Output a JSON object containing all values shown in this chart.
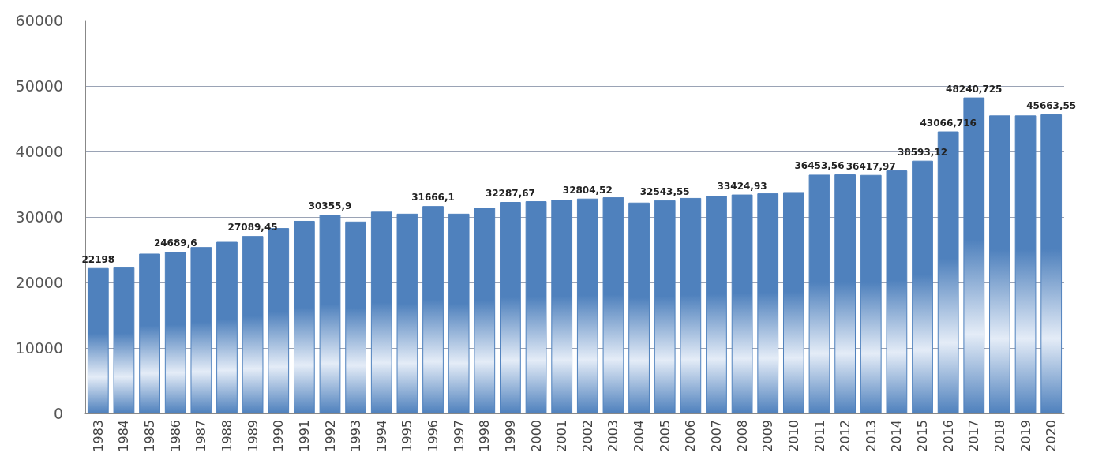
{
  "chart_data": {
    "type": "bar",
    "categories": [
      "1983",
      "1984",
      "1985",
      "1986",
      "1987",
      "1988",
      "1989",
      "1990",
      "1991",
      "1992",
      "1993",
      "1994",
      "1995",
      "1996",
      "1997",
      "1998",
      "1999",
      "2000",
      "2001",
      "2002",
      "2003",
      "2004",
      "2005",
      "2006",
      "2007",
      "2008",
      "2009",
      "2010",
      "2011",
      "2012",
      "2013",
      "2014",
      "2015",
      "2016",
      "2017",
      "2018",
      "2019",
      "2020"
    ],
    "values": [
      22198,
      22300,
      24400,
      24689.6,
      25400,
      26200,
      27089.45,
      28300,
      29400,
      30355.9,
      29300,
      30800,
      30500,
      31666.1,
      30500,
      31400,
      32287.67,
      32400,
      32600,
      32804.52,
      33000,
      32200,
      32543.55,
      32900,
      33200,
      33424.93,
      33600,
      33800,
      36453.56,
      36500,
      36417.97,
      37100,
      38593.12,
      43066.716,
      48240.725,
      45500,
      45500,
      45663.55
    ],
    "value_labels": [
      "22198",
      null,
      null,
      "24689,6",
      null,
      null,
      "27089,45",
      null,
      null,
      "30355,9",
      null,
      null,
      null,
      "31666,1",
      null,
      null,
      "32287,67",
      null,
      null,
      "32804,52",
      null,
      null,
      "32543,55",
      null,
      null,
      "33424,93",
      null,
      null,
      "36453,56",
      null,
      "36417,97",
      null,
      "38593,12",
      "43066,716",
      "48240,725",
      null,
      null,
      "45663,55"
    ],
    "color": "#4f81bd",
    "ylim": [
      0,
      60000
    ],
    "yticks": [
      0,
      10000,
      20000,
      30000,
      40000,
      50000,
      60000
    ],
    "grid": "y"
  }
}
